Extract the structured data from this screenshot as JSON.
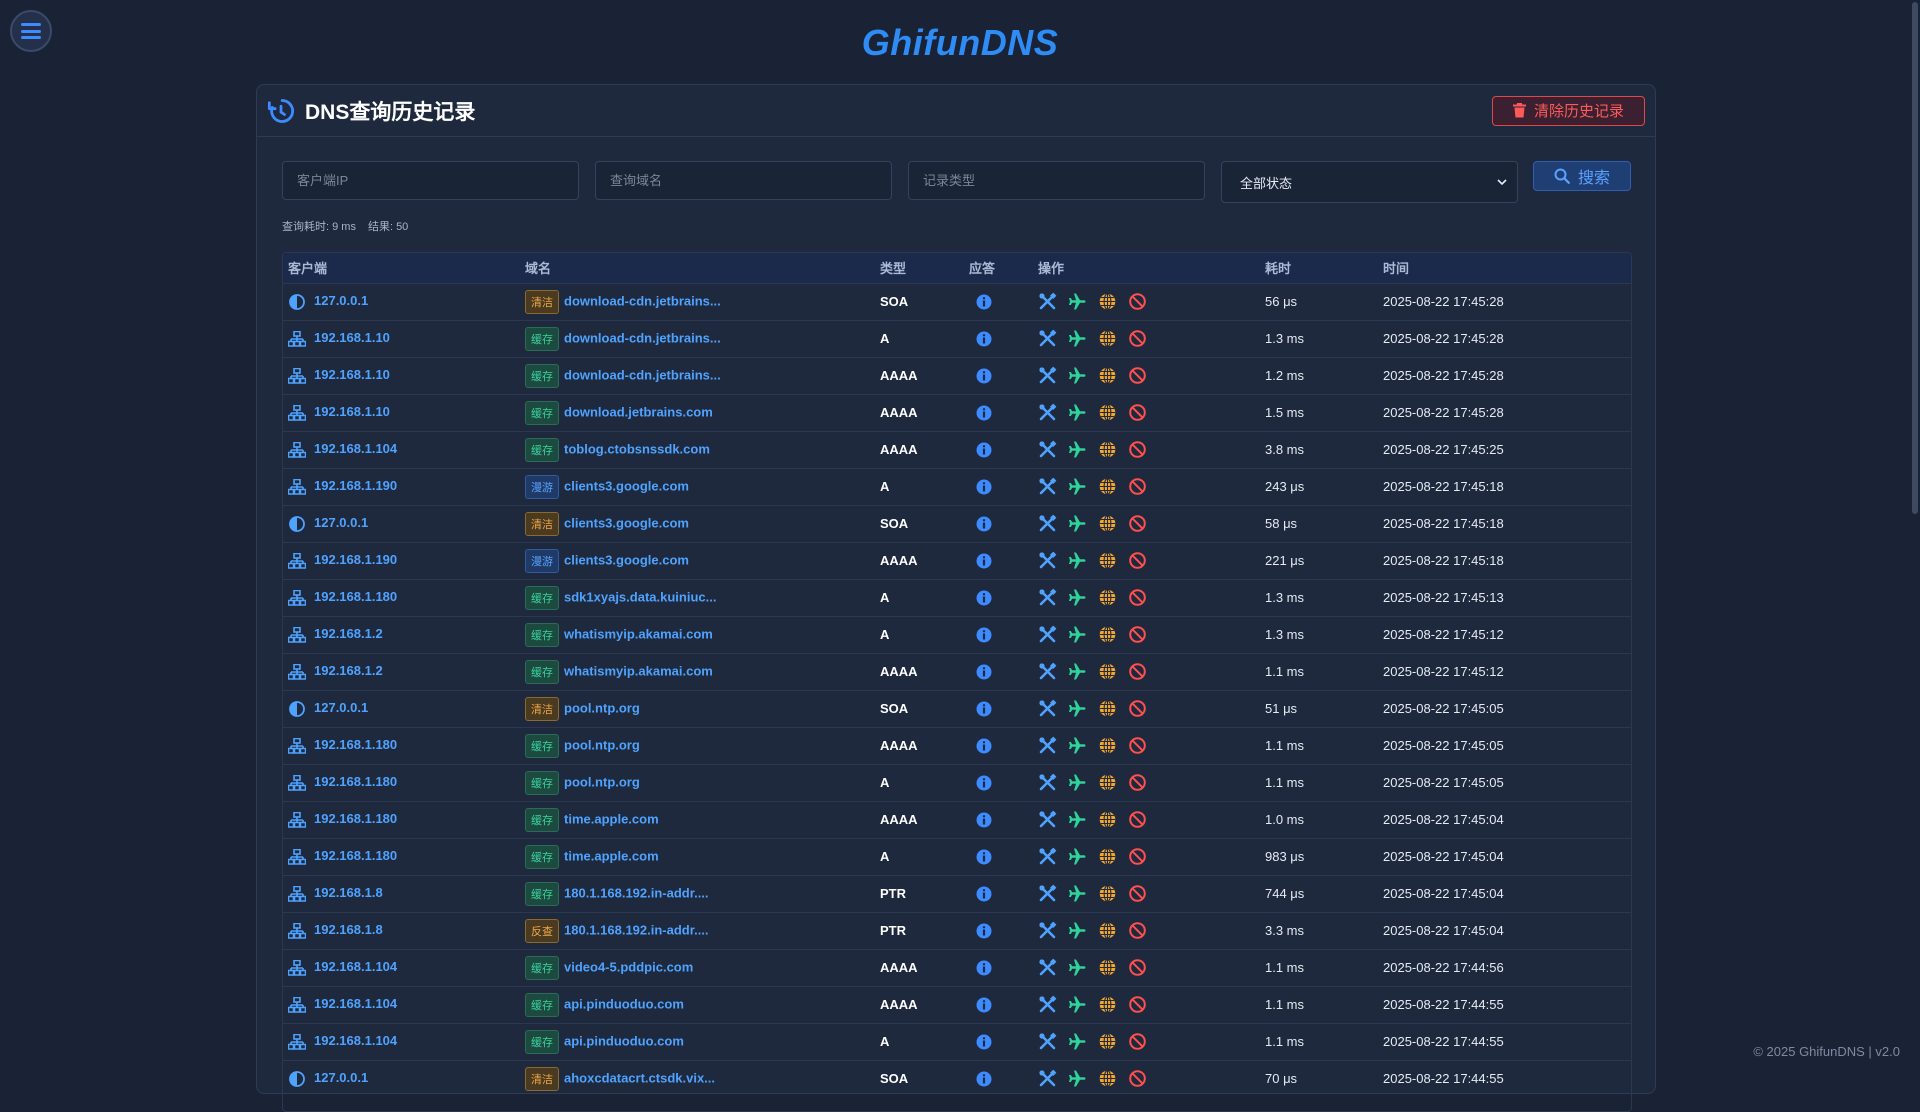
{
  "brand": "GhifunDNS",
  "panel": {
    "title": "DNS查询历史记录",
    "clear_label": "清除历史记录"
  },
  "filters": {
    "client_ip_placeholder": "客户端IP",
    "domain_placeholder": "查询域名",
    "type_placeholder": "记录类型",
    "status_value": "全部状态",
    "search_label": "搜索"
  },
  "stats": {
    "elapsed": "查询耗时: 9 ms",
    "results": "结果: 50"
  },
  "table": {
    "headers": [
      "客户端",
      "域名",
      "类型",
      "应答",
      "操作",
      "耗时",
      "时间"
    ],
    "rows": [
      {
        "client": "127.0.0.1",
        "client_kind": "local",
        "badge": "清洁",
        "badge_kind": "clean",
        "domain": "download-cdn.jetbrains...",
        "type": "SOA",
        "duration": "56 μs",
        "time": "2025-08-22 17:45:28"
      },
      {
        "client": "192.168.1.10",
        "client_kind": "network",
        "badge": "缓存",
        "badge_kind": "cache",
        "domain": "download-cdn.jetbrains...",
        "type": "A",
        "duration": "1.3 ms",
        "time": "2025-08-22 17:45:28"
      },
      {
        "client": "192.168.1.10",
        "client_kind": "network",
        "badge": "缓存",
        "badge_kind": "cache",
        "domain": "download-cdn.jetbrains...",
        "type": "AAAA",
        "duration": "1.2 ms",
        "time": "2025-08-22 17:45:28"
      },
      {
        "client": "192.168.1.10",
        "client_kind": "network",
        "badge": "缓存",
        "badge_kind": "cache",
        "domain": "download.jetbrains.com",
        "type": "AAAA",
        "duration": "1.5 ms",
        "time": "2025-08-22 17:45:28"
      },
      {
        "client": "192.168.1.104",
        "client_kind": "network",
        "badge": "缓存",
        "badge_kind": "cache",
        "domain": "toblog.ctobsnssdk.com",
        "type": "AAAA",
        "duration": "3.8 ms",
        "time": "2025-08-22 17:45:25"
      },
      {
        "client": "192.168.1.190",
        "client_kind": "network",
        "badge": "漫游",
        "badge_kind": "roam",
        "domain": "clients3.google.com",
        "type": "A",
        "duration": "243 μs",
        "time": "2025-08-22 17:45:18"
      },
      {
        "client": "127.0.0.1",
        "client_kind": "local",
        "badge": "清洁",
        "badge_kind": "clean",
        "domain": "clients3.google.com",
        "type": "SOA",
        "duration": "58 μs",
        "time": "2025-08-22 17:45:18"
      },
      {
        "client": "192.168.1.190",
        "client_kind": "network",
        "badge": "漫游",
        "badge_kind": "roam",
        "domain": "clients3.google.com",
        "type": "AAAA",
        "duration": "221 μs",
        "time": "2025-08-22 17:45:18"
      },
      {
        "client": "192.168.1.180",
        "client_kind": "network",
        "badge": "缓存",
        "badge_kind": "cache",
        "domain": "sdk1xyajs.data.kuiniuc...",
        "type": "A",
        "duration": "1.3 ms",
        "time": "2025-08-22 17:45:13"
      },
      {
        "client": "192.168.1.2",
        "client_kind": "network",
        "badge": "缓存",
        "badge_kind": "cache",
        "domain": "whatismyip.akamai.com",
        "type": "A",
        "duration": "1.3 ms",
        "time": "2025-08-22 17:45:12"
      },
      {
        "client": "192.168.1.2",
        "client_kind": "network",
        "badge": "缓存",
        "badge_kind": "cache",
        "domain": "whatismyip.akamai.com",
        "type": "AAAA",
        "duration": "1.1 ms",
        "time": "2025-08-22 17:45:12"
      },
      {
        "client": "127.0.0.1",
        "client_kind": "local",
        "badge": "清洁",
        "badge_kind": "clean",
        "domain": "pool.ntp.org",
        "type": "SOA",
        "duration": "51 μs",
        "time": "2025-08-22 17:45:05"
      },
      {
        "client": "192.168.1.180",
        "client_kind": "network",
        "badge": "缓存",
        "badge_kind": "cache",
        "domain": "pool.ntp.org",
        "type": "AAAA",
        "duration": "1.1 ms",
        "time": "2025-08-22 17:45:05"
      },
      {
        "client": "192.168.1.180",
        "client_kind": "network",
        "badge": "缓存",
        "badge_kind": "cache",
        "domain": "pool.ntp.org",
        "type": "A",
        "duration": "1.1 ms",
        "time": "2025-08-22 17:45:05"
      },
      {
        "client": "192.168.1.180",
        "client_kind": "network",
        "badge": "缓存",
        "badge_kind": "cache",
        "domain": "time.apple.com",
        "type": "AAAA",
        "duration": "1.0 ms",
        "time": "2025-08-22 17:45:04"
      },
      {
        "client": "192.168.1.180",
        "client_kind": "network",
        "badge": "缓存",
        "badge_kind": "cache",
        "domain": "time.apple.com",
        "type": "A",
        "duration": "983 μs",
        "time": "2025-08-22 17:45:04"
      },
      {
        "client": "192.168.1.8",
        "client_kind": "network",
        "badge": "缓存",
        "badge_kind": "cache",
        "domain": "180.1.168.192.in-addr....",
        "type": "PTR",
        "duration": "744 μs",
        "time": "2025-08-22 17:45:04"
      },
      {
        "client": "192.168.1.8",
        "client_kind": "network",
        "badge": "反查",
        "badge_kind": "reverse",
        "domain": "180.1.168.192.in-addr....",
        "type": "PTR",
        "duration": "3.3 ms",
        "time": "2025-08-22 17:45:04"
      },
      {
        "client": "192.168.1.104",
        "client_kind": "network",
        "badge": "缓存",
        "badge_kind": "cache",
        "domain": "video4-5.pddpic.com",
        "type": "AAAA",
        "duration": "1.1 ms",
        "time": "2025-08-22 17:44:56"
      },
      {
        "client": "192.168.1.104",
        "client_kind": "network",
        "badge": "缓存",
        "badge_kind": "cache",
        "domain": "api.pinduoduo.com",
        "type": "AAAA",
        "duration": "1.1 ms",
        "time": "2025-08-22 17:44:55"
      },
      {
        "client": "192.168.1.104",
        "client_kind": "network",
        "badge": "缓存",
        "badge_kind": "cache",
        "domain": "api.pinduoduo.com",
        "type": "A",
        "duration": "1.1 ms",
        "time": "2025-08-22 17:44:55"
      },
      {
        "client": "127.0.0.1",
        "client_kind": "local",
        "badge": "清洁",
        "badge_kind": "clean",
        "domain": "ahoxcdatacrt.ctsdk.vix...",
        "type": "SOA",
        "duration": "70 μs",
        "time": "2025-08-22 17:44:55"
      }
    ]
  },
  "footer": "© 2025 GhifunDNS | v2.0",
  "icons": {
    "menu": "hamburger-icon",
    "history": "history-icon",
    "trash": "trash-icon",
    "search": "search-icon",
    "local_client": "half-circle-icon",
    "network_client": "network-icon",
    "answer": "info-icon",
    "ops": [
      "tools-icon",
      "plane-icon",
      "globe-icon",
      "block-icon"
    ]
  },
  "colors": {
    "accent": "#2f8cf5",
    "danger": "#ff5a5a",
    "cache": "#3ad29b",
    "clean": "#f0a64a",
    "roam": "#5aa2ff"
  }
}
